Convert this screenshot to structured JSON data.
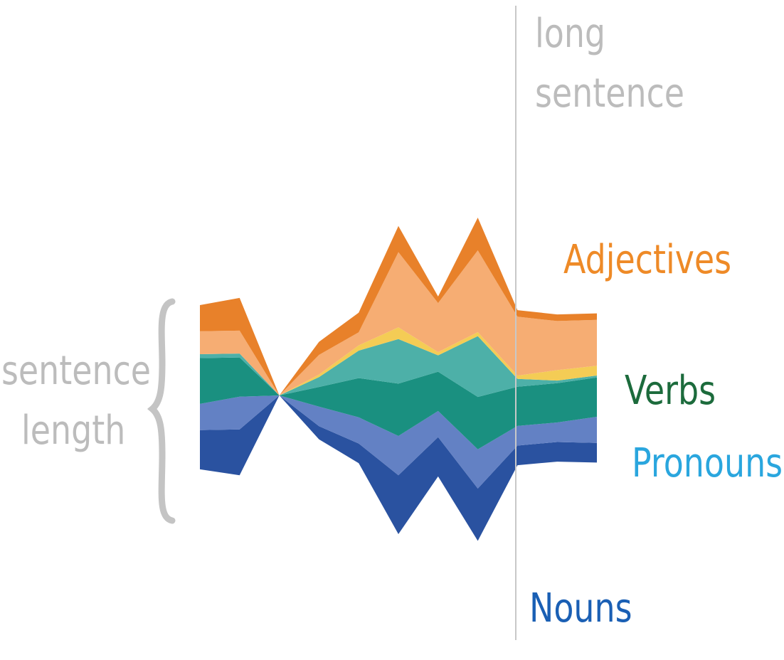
{
  "chart_data": {
    "type": "area",
    "layout": "streamgraph",
    "x": [
      1,
      2,
      3,
      4,
      5,
      6,
      7,
      8,
      9,
      10,
      11
    ],
    "series": [
      {
        "name": "Nouns",
        "color": "#2a52a0",
        "values": [
          6,
          7,
          0,
          2,
          3,
          9,
          6,
          8,
          3,
          3,
          3
        ]
      },
      {
        "name": "Pronouns",
        "color": "#6381c4",
        "values": [
          4,
          5,
          0,
          3,
          4,
          6,
          4,
          6,
          3,
          3,
          4
        ]
      },
      {
        "name": "Verbs",
        "color": "#1a9080",
        "values": [
          7,
          6,
          0,
          3,
          6,
          8,
          6,
          8,
          6,
          6,
          6
        ]
      },
      {
        "name": "",
        "color": "#4db0a8",
        "values": [
          0.6,
          0.6,
          0,
          1.5,
          4.2,
          6.8,
          2.5,
          9.3,
          1.2,
          0.4,
          0.3
        ]
      },
      {
        "name": "",
        "color": "#f4cc55",
        "values": [
          0,
          0,
          0,
          0.4,
          0.8,
          1.8,
          0.5,
          0.6,
          0.5,
          1.6,
          1.5
        ]
      },
      {
        "name": "Adjectives",
        "color": "#f6ad73",
        "values": [
          3.5,
          3.5,
          0,
          3.0,
          2.0,
          11.5,
          7.5,
          12.5,
          9.0,
          7.5,
          7.0
        ]
      },
      {
        "name": "",
        "color": "#e8812a",
        "values": [
          4,
          5,
          0,
          2,
          3,
          4,
          1,
          5,
          1,
          1,
          1
        ]
      }
    ],
    "annotations": [
      "long sentence",
      "sentence length"
    ],
    "legend": "inline-right"
  },
  "labels": {
    "long_1": "long",
    "long_2": "sentence",
    "len_1": "sentence",
    "len_2": "length",
    "adjectives": "Adjectives",
    "verbs": "Verbs",
    "pronouns": "Pronouns",
    "nouns": "Nouns"
  },
  "colors": {
    "adjectives": "#ee8a27",
    "verbs": "#1c6b3c",
    "pronouns": "#2aa6de",
    "nouns": "#1a5fb4",
    "annotation": "#bcbcbc"
  }
}
